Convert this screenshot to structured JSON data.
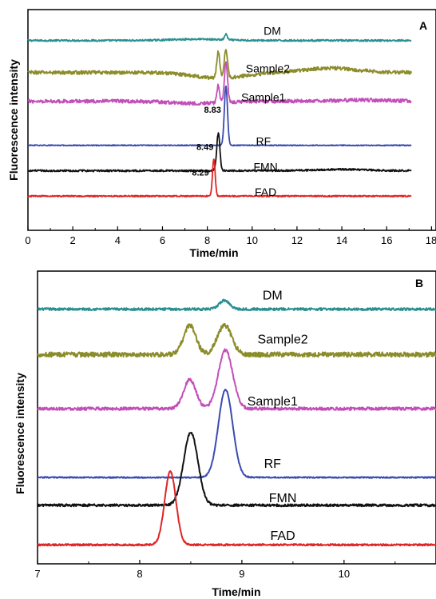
{
  "chart_data": [
    {
      "type": "line",
      "panel_label": "A",
      "xlabel": "Time/min",
      "ylabel": "Fluorescence intensity",
      "xlim": [
        0,
        18.2
      ],
      "xticks": [
        0,
        2,
        4,
        6,
        8,
        10,
        12,
        14,
        16,
        18
      ],
      "x_end": 17.1,
      "series": [
        {
          "name": "DM",
          "color": "#2a8f8f",
          "baseline": 0.86,
          "noise": 0.004,
          "drift": [
            [
              7.5,
              0.006
            ]
          ],
          "peaks": [
            {
              "x": 8.83,
              "h": 0.025,
              "w": 0.06
            }
          ]
        },
        {
          "name": "Sample2",
          "color": "#8b8c2a",
          "baseline": 0.715,
          "noise": 0.008,
          "drift": [
            [
              8.5,
              -0.025
            ],
            [
              13.5,
              0.02
            ]
          ],
          "peaks": [
            {
              "x": 8.49,
              "h": 0.12,
              "w": 0.07
            },
            {
              "x": 8.83,
              "h": 0.13,
              "w": 0.07
            }
          ]
        },
        {
          "name": "Sample1",
          "color": "#c24fb8",
          "baseline": 0.585,
          "noise": 0.008,
          "drift": [
            [
              7.5,
              -0.01
            ],
            [
              15,
              0.005
            ]
          ],
          "peaks": [
            {
              "x": 8.49,
              "h": 0.08,
              "w": 0.06
            },
            {
              "x": 8.83,
              "h": 0.18,
              "w": 0.07
            }
          ]
        },
        {
          "name": "RF",
          "color": "#3a4bb0",
          "baseline": 0.385,
          "noise": 0.002,
          "drift": [],
          "peaks": [
            {
              "x": 8.83,
              "h": 0.27,
              "w": 0.07
            }
          ]
        },
        {
          "name": "FMN",
          "color": "#111111",
          "baseline": 0.27,
          "noise": 0.004,
          "drift": [
            [
              14,
              0.006
            ]
          ],
          "peaks": [
            {
              "x": 8.49,
              "h": 0.17,
              "w": 0.07
            }
          ]
        },
        {
          "name": "FAD",
          "color": "#e02525",
          "baseline": 0.155,
          "noise": 0.003,
          "drift": [],
          "peaks": [
            {
              "x": 8.29,
              "h": 0.17,
              "w": 0.06
            }
          ]
        }
      ],
      "annotations": [
        {
          "text": "8.83",
          "x": 8.83,
          "series": "RF"
        },
        {
          "text": "8.49",
          "x": 8.49,
          "series": "FMN"
        },
        {
          "text": "8.29",
          "x": 8.29,
          "series": "FAD"
        }
      ]
    },
    {
      "type": "line",
      "panel_label": "B",
      "xlabel": "Time/min",
      "ylabel": "Fluorescence intensity",
      "xlim": [
        7,
        10.9
      ],
      "xticks": [
        7,
        8,
        9,
        10
      ],
      "series": [
        {
          "name": "DM",
          "color": "#2a8f8f",
          "baseline": 0.87,
          "noise": 0.004,
          "drift": [],
          "peaks": [
            {
              "x": 8.83,
              "h": 0.03,
              "w": 0.05
            }
          ]
        },
        {
          "name": "Sample2",
          "color": "#8b8c2a",
          "baseline": 0.715,
          "noise": 0.008,
          "drift": [],
          "peaks": [
            {
              "x": 8.49,
              "h": 0.1,
              "w": 0.06
            },
            {
              "x": 8.83,
              "h": 0.1,
              "w": 0.07
            }
          ]
        },
        {
          "name": "Sample1",
          "color": "#c24fb8",
          "baseline": 0.53,
          "noise": 0.005,
          "drift": [],
          "peaks": [
            {
              "x": 8.49,
              "h": 0.1,
              "w": 0.06
            },
            {
              "x": 8.84,
              "h": 0.2,
              "w": 0.07
            }
          ]
        },
        {
          "name": "RF",
          "color": "#3a4bb0",
          "baseline": 0.295,
          "noise": 0.002,
          "drift": [],
          "peaks": [
            {
              "x": 8.84,
              "h": 0.3,
              "w": 0.07
            }
          ]
        },
        {
          "name": "FMN",
          "color": "#111111",
          "baseline": 0.2,
          "noise": 0.004,
          "drift": [],
          "peaks": [
            {
              "x": 8.5,
              "h": 0.25,
              "w": 0.07
            }
          ]
        },
        {
          "name": "FAD",
          "color": "#e02525",
          "baseline": 0.065,
          "noise": 0.003,
          "drift": [],
          "peaks": [
            {
              "x": 8.3,
              "h": 0.25,
              "w": 0.055
            }
          ]
        }
      ]
    }
  ]
}
